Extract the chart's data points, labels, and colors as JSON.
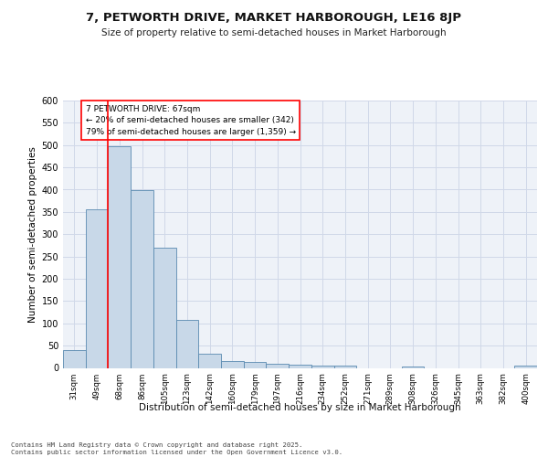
{
  "title": "7, PETWORTH DRIVE, MARKET HARBOROUGH, LE16 8JP",
  "subtitle": "Size of property relative to semi-detached houses in Market Harborough",
  "xlabel": "Distribution of semi-detached houses by size in Market Harborough",
  "ylabel": "Number of semi-detached properties",
  "bar_color": "#c8d8e8",
  "bar_edge_color": "#5a8ab0",
  "grid_color": "#d0d8e8",
  "background_color": "#eef2f8",
  "categories": [
    "31sqm",
    "49sqm",
    "68sqm",
    "86sqm",
    "105sqm",
    "123sqm",
    "142sqm",
    "160sqm",
    "179sqm",
    "197sqm",
    "216sqm",
    "234sqm",
    "252sqm",
    "271sqm",
    "289sqm",
    "308sqm",
    "326sqm",
    "345sqm",
    "363sqm",
    "382sqm",
    "400sqm"
  ],
  "values": [
    41,
    355,
    497,
    399,
    270,
    107,
    31,
    16,
    13,
    9,
    8,
    6,
    5,
    0,
    0,
    4,
    0,
    0,
    0,
    0,
    5
  ],
  "vline_position": 1.5,
  "annotation_text_line1": "7 PETWORTH DRIVE: 67sqm",
  "annotation_text_line2": "← 20% of semi-detached houses are smaller (342)",
  "annotation_text_line3": "79% of semi-detached houses are larger (1,359) →",
  "footer_line1": "Contains HM Land Registry data © Crown copyright and database right 2025.",
  "footer_line2": "Contains public sector information licensed under the Open Government Licence v3.0.",
  "ylim": [
    0,
    600
  ]
}
